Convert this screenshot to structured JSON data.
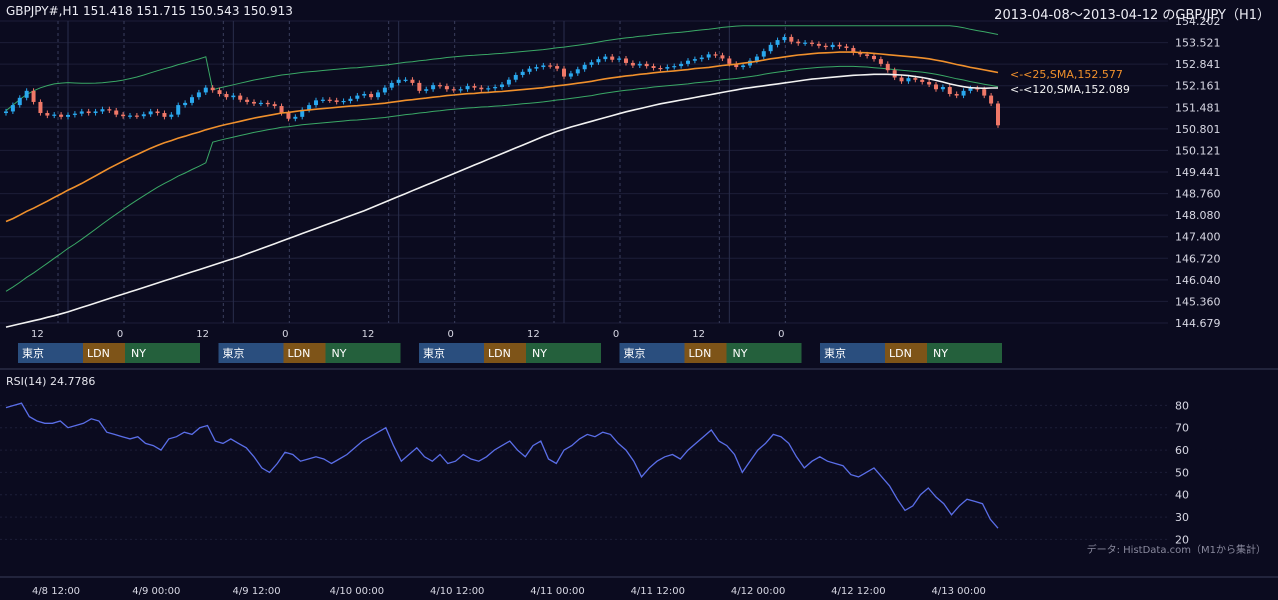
{
  "header": {
    "ohlc": "GBPJPY#,H1 151.418 151.715 150.543 150.913",
    "range": "2013-04-08～2013-04-12 のGBP/JPY（H1）"
  },
  "indicators": {
    "sma25": "<-<25,SMA,152.577",
    "sma120": "<-<120,SMA,152.089",
    "rsi": "RSI(14) 24.7786"
  },
  "source": "データ: HistData.com（M1から集計）",
  "colors": {
    "background": "#0b0b1f",
    "up": "#2aa8ee",
    "down": "#f07868",
    "sma25": "#f0902c",
    "sma120": "#f2f2f2",
    "bollinger": "#3aa866",
    "rsi": "#5a6ee8",
    "tokyo": "#2a4e7e",
    "london": "#7e5418",
    "ny": "#24603c"
  },
  "sessions": {
    "tokyo": "東京",
    "london": "LDN",
    "ny": "NY"
  },
  "chart_data": [
    {
      "type": "candlestick",
      "x_unit": "hour (H1 bars, 2013-04-08 to 2013-04-12)",
      "y_ticks": [
        "154.202",
        "153.521",
        "152.841",
        "152.161",
        "151.481",
        "150.801",
        "150.121",
        "149.441",
        "148.760",
        "148.080",
        "147.400",
        "146.720",
        "146.040",
        "145.360",
        "144.679"
      ],
      "ylim": [
        144.679,
        154.202
      ],
      "hour_tick_labels": [
        "12",
        "0",
        "12",
        "0",
        "12",
        "0",
        "12",
        "0",
        "12",
        "0"
      ],
      "series": [
        {
          "name": "25,SMA",
          "last": 152.577
        },
        {
          "name": "120,SMA",
          "last": 152.089
        }
      ],
      "close": [
        151.35,
        151.55,
        151.78,
        152.0,
        151.65,
        151.3,
        151.22,
        151.25,
        151.18,
        151.24,
        151.28,
        151.35,
        151.3,
        151.35,
        151.42,
        151.38,
        151.25,
        151.2,
        151.22,
        151.2,
        151.26,
        151.35,
        151.3,
        151.18,
        151.25,
        151.55,
        151.62,
        151.8,
        151.95,
        152.1,
        152.02,
        151.9,
        151.8,
        151.85,
        151.72,
        151.65,
        151.6,
        151.62,
        151.58,
        151.52,
        151.3,
        151.12,
        151.18,
        151.4,
        151.55,
        151.7,
        151.72,
        151.7,
        151.65,
        151.68,
        151.75,
        151.85,
        151.9,
        151.8,
        151.95,
        152.1,
        152.25,
        152.35,
        152.35,
        152.25,
        152.0,
        152.05,
        152.18,
        152.15,
        152.05,
        152.02,
        152.05,
        152.15,
        152.1,
        152.05,
        152.08,
        152.12,
        152.2,
        152.35,
        152.5,
        152.6,
        152.7,
        152.75,
        152.8,
        152.78,
        152.7,
        152.45,
        152.55,
        152.68,
        152.82,
        152.9,
        153.0,
        153.08,
        152.98,
        153.02,
        152.88,
        152.8,
        152.85,
        152.78,
        152.72,
        152.7,
        152.75,
        152.78,
        152.85,
        152.95,
        153.0,
        153.05,
        153.15,
        153.12,
        153.02,
        152.85,
        152.75,
        152.8,
        152.95,
        153.08,
        153.25,
        153.45,
        153.6,
        153.7,
        153.55,
        153.5,
        153.52,
        153.48,
        153.42,
        153.38,
        153.45,
        153.4,
        153.35,
        153.2,
        153.15,
        153.1,
        153.0,
        152.85,
        152.65,
        152.42,
        152.3,
        152.4,
        152.35,
        152.28,
        152.2,
        152.05,
        152.12,
        151.9,
        151.85,
        152.0,
        152.08,
        152.05,
        151.85,
        151.6,
        150.913
      ],
      "sma25": [
        147.88,
        147.97,
        148.08,
        148.2,
        148.3,
        148.41,
        148.52,
        148.64,
        148.75,
        148.87,
        148.97,
        149.08,
        149.2,
        149.32,
        149.44,
        149.56,
        149.67,
        149.78,
        149.89,
        149.99,
        150.09,
        150.19,
        150.28,
        150.36,
        150.43,
        150.51,
        150.57,
        150.64,
        150.7,
        150.77,
        150.83,
        150.89,
        150.94,
        150.99,
        151.04,
        151.09,
        151.14,
        151.18,
        151.22,
        151.26,
        151.3,
        151.32,
        151.35,
        151.38,
        151.4,
        151.42,
        151.44,
        151.46,
        151.48,
        151.5,
        151.52,
        151.53,
        151.55,
        151.57,
        151.59,
        151.61,
        151.64,
        151.67,
        151.7,
        151.72,
        151.75,
        151.77,
        151.8,
        151.82,
        151.85,
        151.87,
        151.89,
        151.91,
        151.92,
        151.94,
        151.95,
        151.97,
        151.98,
        152.0,
        152.02,
        152.04,
        152.06,
        152.08,
        152.1,
        152.13,
        152.16,
        152.18,
        152.21,
        152.24,
        152.27,
        152.3,
        152.34,
        152.38,
        152.41,
        152.44,
        152.47,
        152.49,
        152.52,
        152.54,
        152.57,
        152.59,
        152.61,
        152.63,
        152.65,
        152.67,
        152.7,
        152.72,
        152.74,
        152.77,
        152.8,
        152.82,
        152.84,
        152.87,
        152.9,
        152.93,
        152.97,
        153.01,
        153.04,
        153.07,
        153.1,
        153.13,
        153.15,
        153.17,
        153.19,
        153.2,
        153.21,
        153.22,
        153.22,
        153.22,
        153.21,
        153.2,
        153.18,
        153.16,
        153.14,
        153.12,
        153.1,
        153.08,
        153.06,
        153.04,
        153.01,
        152.97,
        152.93,
        152.88,
        152.83,
        152.79,
        152.74,
        152.7,
        152.66,
        152.62,
        152.577
      ],
      "sma120": [
        144.55,
        144.6,
        144.65,
        144.7,
        144.75,
        144.8,
        144.86,
        144.91,
        144.97,
        145.03,
        145.1,
        145.17,
        145.24,
        145.31,
        145.38,
        145.45,
        145.52,
        145.59,
        145.66,
        145.73,
        145.8,
        145.87,
        145.94,
        146.01,
        146.08,
        146.15,
        146.22,
        146.29,
        146.36,
        146.43,
        146.5,
        146.57,
        146.64,
        146.71,
        146.78,
        146.86,
        146.94,
        147.02,
        147.1,
        147.18,
        147.26,
        147.34,
        147.42,
        147.5,
        147.58,
        147.66,
        147.74,
        147.82,
        147.9,
        147.98,
        148.06,
        148.14,
        148.22,
        148.31,
        148.4,
        148.49,
        148.58,
        148.67,
        148.76,
        148.85,
        148.94,
        149.03,
        149.12,
        149.21,
        149.3,
        149.39,
        149.48,
        149.57,
        149.66,
        149.75,
        149.84,
        149.93,
        150.02,
        150.11,
        150.2,
        150.29,
        150.38,
        150.47,
        150.56,
        150.64,
        150.72,
        150.79,
        150.86,
        150.92,
        150.98,
        151.04,
        151.1,
        151.16,
        151.22,
        151.28,
        151.34,
        151.39,
        151.44,
        151.49,
        151.54,
        151.59,
        151.63,
        151.67,
        151.71,
        151.75,
        151.79,
        151.83,
        151.87,
        151.91,
        151.95,
        151.99,
        152.03,
        152.07,
        152.1,
        152.13,
        152.16,
        152.19,
        152.22,
        152.25,
        152.28,
        152.31,
        152.34,
        152.37,
        152.39,
        152.41,
        152.43,
        152.45,
        152.47,
        152.49,
        152.5,
        152.51,
        152.52,
        152.52,
        152.52,
        152.51,
        152.5,
        152.48,
        152.45,
        152.42,
        152.38,
        152.33,
        152.28,
        152.22,
        152.17,
        152.13,
        152.1,
        152.09,
        152.08,
        152.089,
        152.089
      ]
    },
    {
      "type": "line",
      "name": "RSI(14)",
      "y_ticks": [
        "80",
        "70",
        "60",
        "50",
        "40",
        "30",
        "20"
      ],
      "ylim": [
        17.5,
        86
      ],
      "x_tick_labels": [
        "4/8 12:00",
        "4/9 00:00",
        "4/9 12:00",
        "4/10 00:00",
        "4/10 12:00",
        "4/11 00:00",
        "4/11 12:00",
        "4/12 00:00",
        "4/12 12:00",
        "4/13 00:00"
      ],
      "values": [
        79,
        80,
        81,
        75,
        73,
        72,
        72,
        73,
        70,
        71,
        72,
        74,
        73,
        68,
        67,
        66,
        65,
        66,
        63,
        62,
        60,
        65,
        66,
        68,
        67,
        70,
        71,
        64,
        63,
        65,
        63,
        61,
        57,
        52,
        50,
        54,
        59,
        58,
        55,
        56,
        57,
        56,
        54,
        56,
        58,
        61,
        64,
        66,
        68,
        70,
        62,
        55,
        58,
        61,
        57,
        55,
        58,
        54,
        55,
        58,
        56,
        55,
        57,
        60,
        62,
        64,
        60,
        57,
        62,
        64,
        56,
        54,
        60,
        62,
        65,
        67,
        66,
        68,
        67,
        63,
        60,
        55,
        48,
        52,
        55,
        57,
        58,
        56,
        60,
        63,
        66,
        69,
        64,
        62,
        58,
        50,
        55,
        60,
        63,
        67,
        66,
        63,
        57,
        52,
        55,
        57,
        55,
        54,
        53,
        49,
        48,
        50,
        52,
        48,
        44,
        38,
        33,
        35,
        40,
        43,
        39,
        36,
        31,
        35,
        38,
        37,
        36,
        29,
        25
      ]
    }
  ]
}
